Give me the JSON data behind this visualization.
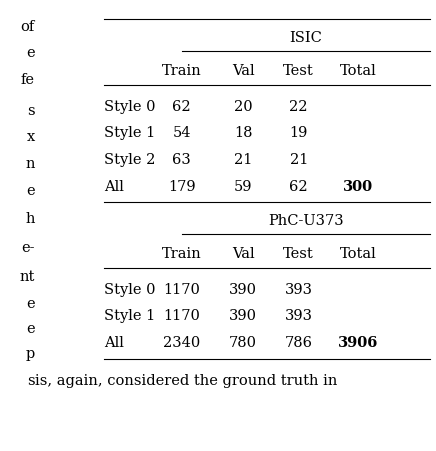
{
  "title1": "ISIC",
  "title2": "PhC-U373",
  "col_headers": [
    "Train",
    "Val",
    "Test",
    "Total"
  ],
  "isic_rows": [
    [
      "Style 0",
      "62",
      "20",
      "22",
      ""
    ],
    [
      "Style 1",
      "54",
      "18",
      "19",
      ""
    ],
    [
      "Style 2",
      "63",
      "21",
      "21",
      ""
    ],
    [
      "All",
      "179",
      "59",
      "62",
      "300"
    ]
  ],
  "phc_rows": [
    [
      "Style 0",
      "1170",
      "390",
      "393",
      ""
    ],
    [
      "Style 1",
      "1170",
      "390",
      "393",
      ""
    ],
    [
      "All",
      "2340",
      "780",
      "786",
      "3906"
    ]
  ],
  "footer_text": "is, again, considered the ground truth in",
  "left_margin_letters": [
    "of",
    "e",
    "fe",
    "s",
    "x",
    "n",
    "e",
    "h",
    "e-",
    "nt",
    "e",
    "e",
    "p",
    "s"
  ],
  "bg_color": "#ffffff",
  "text_color": "#000000",
  "font_size": 10.5,
  "left_letters_items": [
    [
      -0.04,
      "of"
    ],
    [
      -0.04,
      "e"
    ],
    [
      -0.04,
      "fe"
    ],
    [
      -0.04,
      "s"
    ],
    [
      -0.04,
      "x"
    ],
    [
      -0.04,
      "n"
    ],
    [
      -0.04,
      "e"
    ],
    [
      -0.04,
      "h"
    ],
    [
      -0.04,
      "e-"
    ],
    [
      -0.04,
      "nt"
    ],
    [
      -0.04,
      "e"
    ],
    [
      -0.04,
      "e"
    ],
    [
      -0.04,
      "p"
    ],
    [
      -0.04,
      "s"
    ]
  ]
}
